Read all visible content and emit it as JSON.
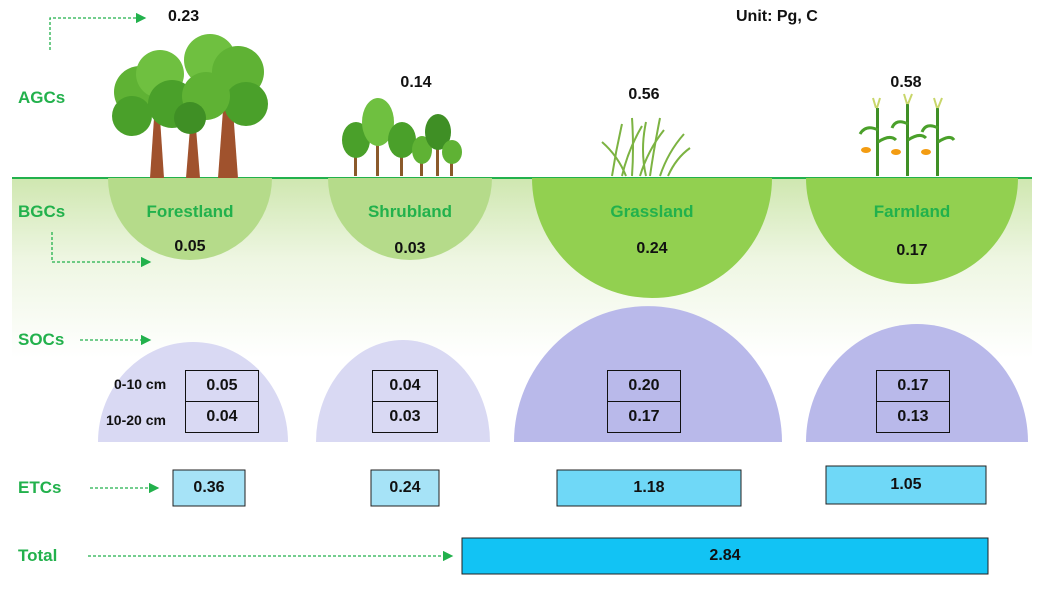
{
  "unit_label": "Unit: Pg, C",
  "row_labels": {
    "agc": "AGCs",
    "bgc": "BGCs",
    "soc": "SOCs",
    "etc": "ETCs",
    "total": "Total"
  },
  "depth_labels": [
    "0-10 cm",
    "10-20 cm"
  ],
  "total_value": "2.84",
  "land_types": [
    {
      "name": "Forestland",
      "agc": "0.23",
      "bgc": "0.05",
      "soc_0_10": "0.05",
      "soc_10_20": "0.04",
      "etc": "0.36"
    },
    {
      "name": "Shrubland",
      "agc": "0.14",
      "bgc": "0.03",
      "soc_0_10": "0.04",
      "soc_10_20": "0.03",
      "etc": "0.24"
    },
    {
      "name": "Grassland",
      "agc": "0.56",
      "bgc": "0.24",
      "soc_0_10": "0.20",
      "soc_10_20": "0.17",
      "etc": "1.18"
    },
    {
      "name": "Farmland",
      "agc": "0.58",
      "bgc": "0.17",
      "soc_0_10": "0.17",
      "soc_10_20": "0.13",
      "etc": "1.05"
    }
  ],
  "colors": {
    "label_green": "#22b14c",
    "bgc_light": "#b5db8a",
    "bgc_dark": "#92d050",
    "soc_light": "#d9d9f3",
    "soc_dark": "#b9b9ea",
    "etc_light": "#a6e3f7",
    "etc_mid": "#6fd8f7",
    "total_blue": "#12c3f4"
  }
}
